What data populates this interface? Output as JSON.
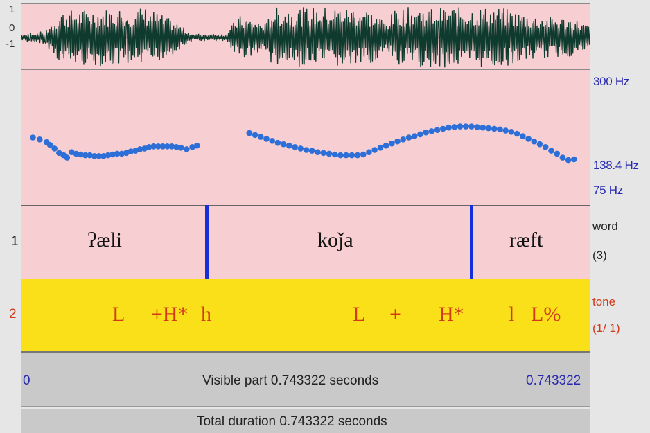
{
  "amplitude_axis": {
    "top": "1",
    "zero": "0",
    "bottom": "-1"
  },
  "pitch_axis": {
    "max": "300 Hz",
    "cursor": "138.4 Hz",
    "min": "75 Hz"
  },
  "tiers": [
    {
      "number": "1",
      "name": "word",
      "count": "(3)",
      "intervals": [
        "ʔæli",
        "koǰa",
        "ræft"
      ]
    },
    {
      "number": "2",
      "name": "tone",
      "count": "(1/ 1)",
      "marks": [
        "L",
        "+H*",
        "h",
        "L",
        "+",
        "H*",
        "l",
        "L%"
      ]
    }
  ],
  "visible": {
    "start": "0",
    "label": "Visible part 0.743322 seconds",
    "end": "0.743322"
  },
  "total": {
    "label": "Total duration 0.743322 seconds"
  },
  "colors": {
    "tier_bg": "#f7cfd2",
    "tone_bg": "#f9e019",
    "pitch": "#2d6fd6",
    "boundary": "#1530d8",
    "tone_text": "#d23a1a",
    "axis_text": "#2a2ab0"
  },
  "pitch_track": {
    "segments": [
      {
        "t": [
          0.02,
          0.032,
          0.044,
          0.05,
          0.058,
          0.066,
          0.074,
          0.08,
          0.088,
          0.096,
          0.104,
          0.112,
          0.12,
          0.128,
          0.136,
          0.144,
          0.152,
          0.16,
          0.168,
          0.176,
          0.184,
          0.192,
          0.2,
          0.208,
          0.216,
          0.224,
          0.232,
          0.24,
          0.248,
          0.256,
          0.264,
          0.272,
          0.28,
          0.29,
          0.3,
          0.308
        ],
        "hz": [
          150,
          147,
          143,
          139,
          134,
          128,
          125,
          122,
          129,
          127,
          126,
          125,
          125,
          124,
          124,
          124,
          125,
          126,
          127,
          127,
          128,
          130,
          131,
          133,
          134,
          136,
          137,
          137,
          137,
          137,
          137,
          136,
          135,
          133,
          136,
          138
        ]
      },
      {
        "t": [
          0.4,
          0.41,
          0.42,
          0.43,
          0.44,
          0.45,
          0.46,
          0.47,
          0.48,
          0.49,
          0.5,
          0.51,
          0.52,
          0.53,
          0.54,
          0.55,
          0.56,
          0.57,
          0.58,
          0.59,
          0.6,
          0.61,
          0.62,
          0.63,
          0.64,
          0.65,
          0.66,
          0.67,
          0.68,
          0.69,
          0.7,
          0.71,
          0.72,
          0.73,
          0.74,
          0.75,
          0.76,
          0.77,
          0.78,
          0.79,
          0.8,
          0.81,
          0.82,
          0.83,
          0.84,
          0.85,
          0.86,
          0.87,
          0.88,
          0.89,
          0.9,
          0.91,
          0.92,
          0.93,
          0.94,
          0.95,
          0.96,
          0.97
        ],
        "hz": [
          157,
          154,
          151,
          148,
          145,
          142,
          140,
          138,
          136,
          134,
          132,
          131,
          129,
          128,
          127,
          126,
          125,
          125,
          125,
          125,
          126,
          129,
          132,
          135,
          138,
          141,
          144,
          147,
          150,
          152,
          155,
          158,
          160,
          162,
          164,
          166,
          167,
          168,
          168,
          168,
          167,
          166,
          165,
          164,
          163,
          161,
          159,
          156,
          152,
          148,
          144,
          140,
          136,
          131,
          127,
          122,
          119,
          120
        ]
      }
    ]
  }
}
